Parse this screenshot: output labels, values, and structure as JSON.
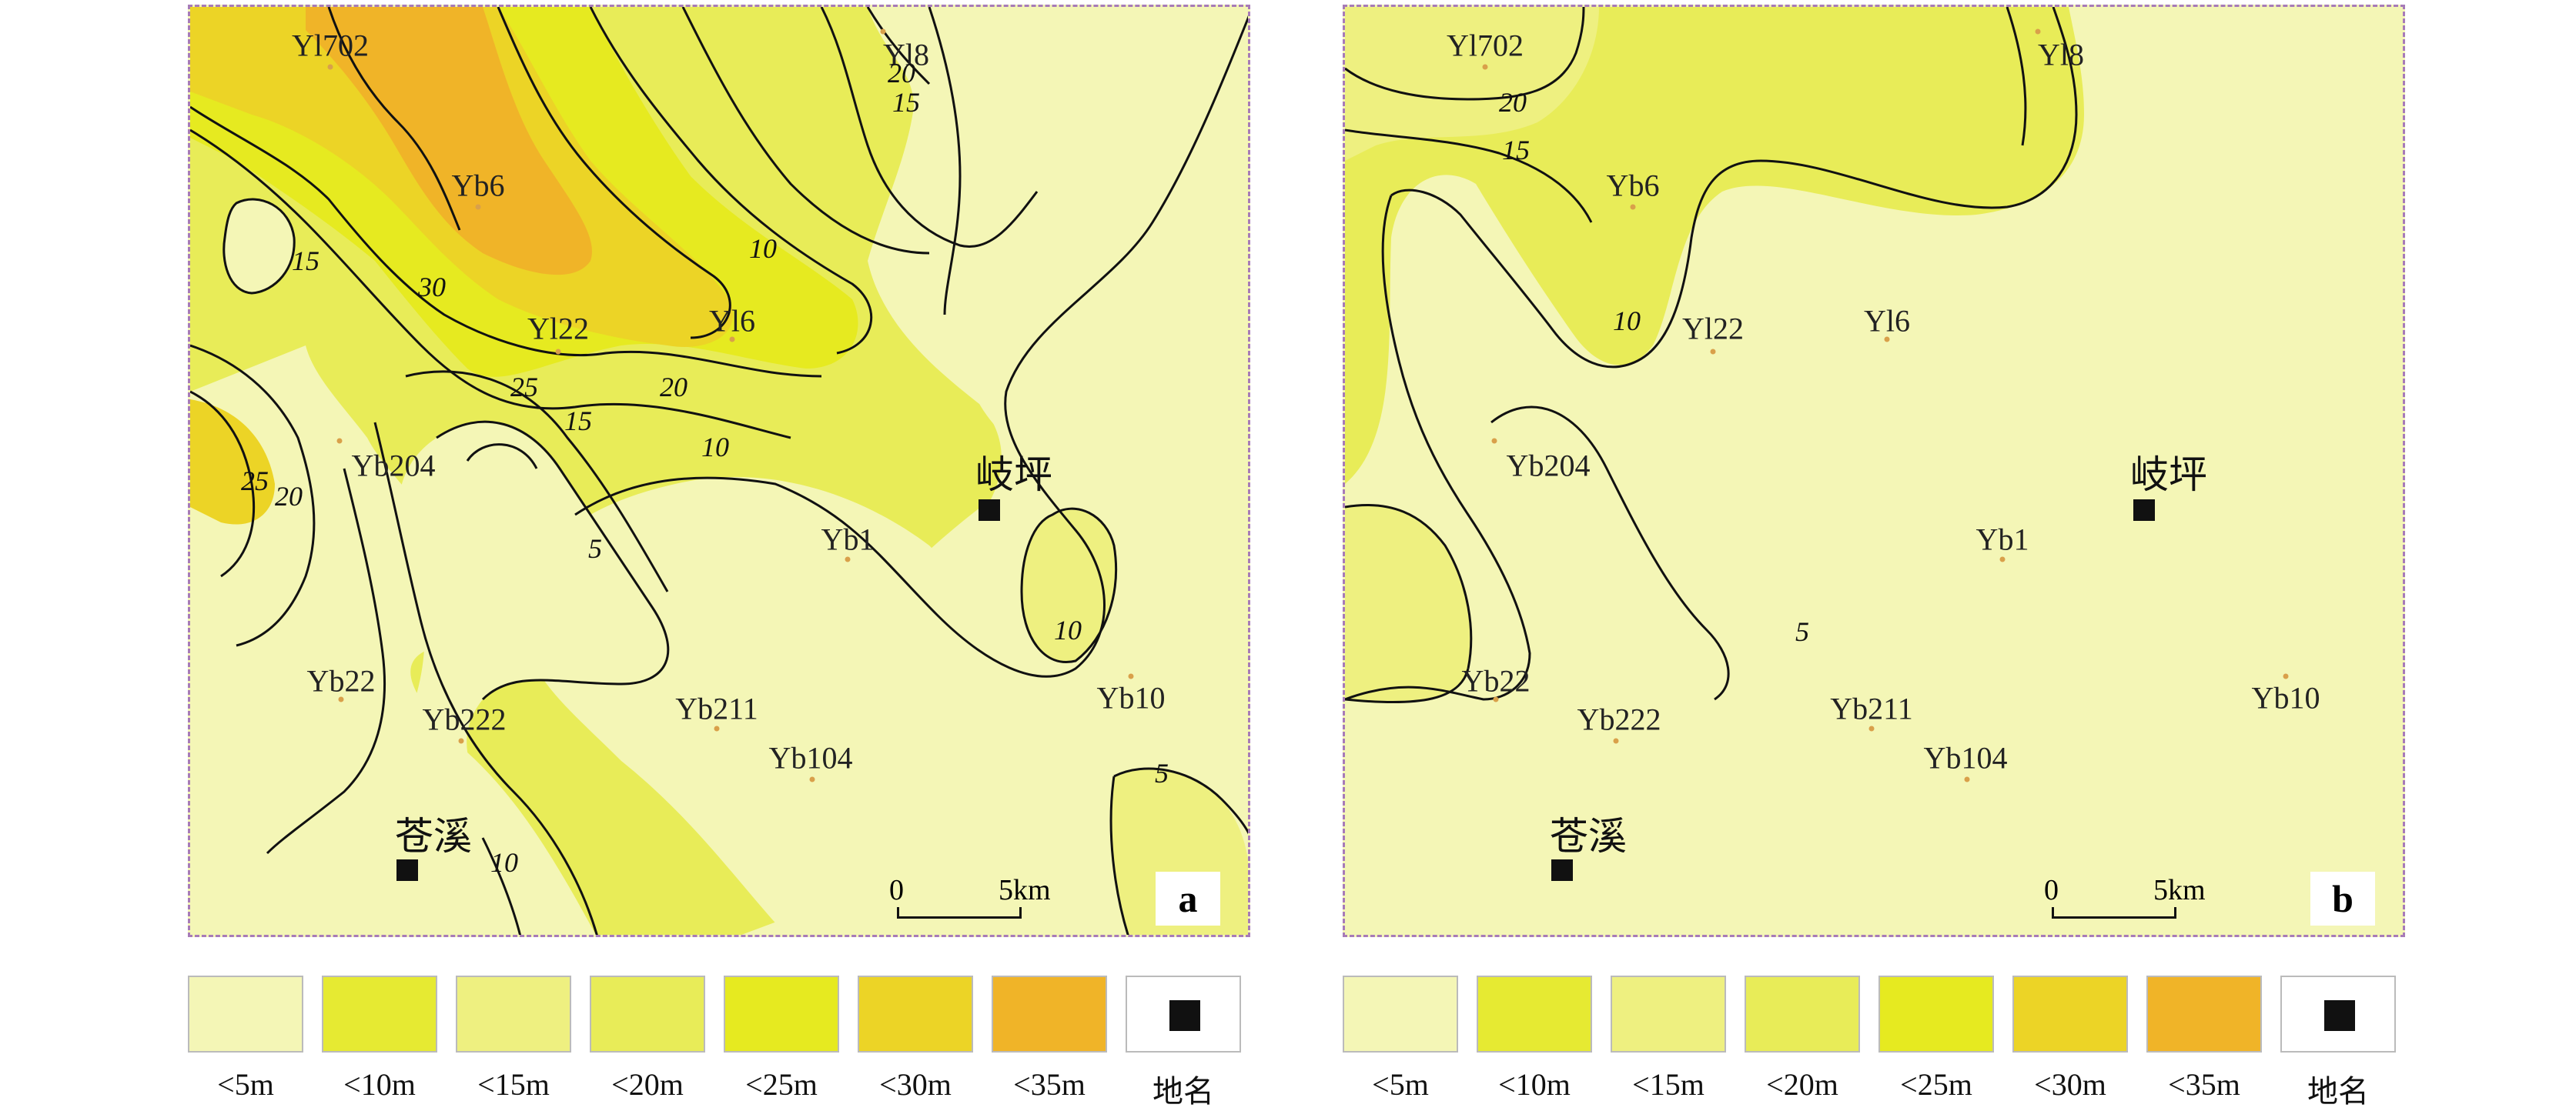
{
  "colors": {
    "lt5": "#f4f6b6",
    "lt10": "#e6ea32",
    "lt15": "#eef080",
    "lt20": "#e8ec58",
    "lt25": "#e6ea20",
    "lt30": "#ecd426",
    "lt35": "#f0b428",
    "boundary": "#a77bb8"
  },
  "wells": [
    "Yl702",
    "Yl8",
    "Yb6",
    "Yl22",
    "Yl6",
    "Yb204",
    "Yb1",
    "Yb22",
    "Yb222",
    "Yb211",
    "Yb104",
    "Yb10"
  ],
  "towns": [
    "岐坪",
    "苍溪"
  ],
  "scale_bar": {
    "start": "0",
    "end": "5km"
  },
  "panel_a": {
    "letter": "a",
    "contour_labels": [
      "20",
      "15",
      "10",
      "15",
      "30",
      "25",
      "20",
      "15",
      "10",
      "25",
      "20",
      "5",
      "10",
      "10",
      "5"
    ]
  },
  "panel_b": {
    "letter": "b",
    "contour_labels": [
      "20",
      "15",
      "10",
      "5"
    ]
  },
  "legend": [
    {
      "label": "<5m",
      "color": "#f4f6b6"
    },
    {
      "label": "<10m",
      "color": "#e6ea32"
    },
    {
      "label": "<15m",
      "color": "#eef080"
    },
    {
      "label": "<20m",
      "color": "#e8ec58"
    },
    {
      "label": "<25m",
      "color": "#e6ea20"
    },
    {
      "label": "<30m",
      "color": "#ecd426"
    },
    {
      "label": "<35m",
      "color": "#f0b428"
    },
    {
      "label": "地名",
      "color": "#ffffff",
      "icon": "town-square-icon"
    }
  ]
}
